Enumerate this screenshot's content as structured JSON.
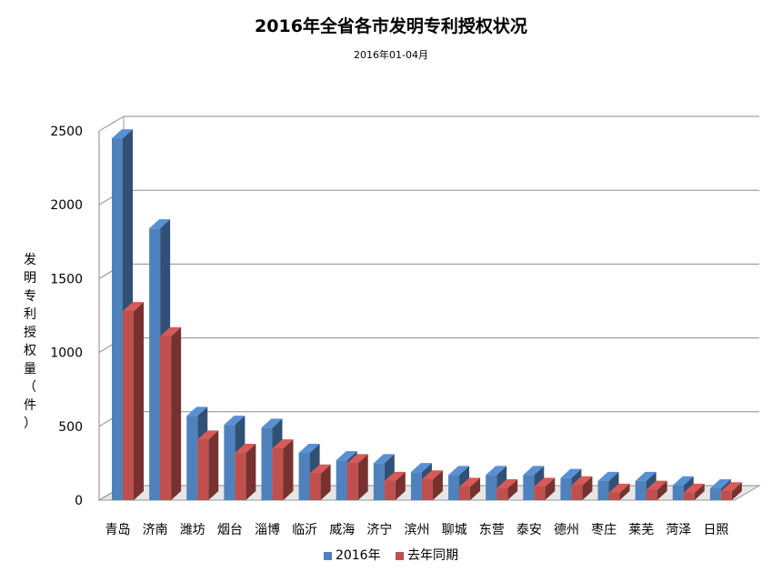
{
  "chart_data": {
    "type": "bar",
    "title": "2016年全省各市发明专利授权状况",
    "subtitle": "2016年01-04月",
    "ylabel": "发明专利授权量（件）",
    "xlabel": "",
    "ylim": [
      0,
      2500
    ],
    "yticks": [
      0,
      500,
      1000,
      1500,
      2000,
      2500
    ],
    "grid": true,
    "legend_position": "bottom",
    "categories": [
      "青岛",
      "济南",
      "潍坊",
      "烟台",
      "淄博",
      "临沂",
      "威海",
      "济宁",
      "滨州",
      "聊城",
      "东营",
      "泰安",
      "德州",
      "枣庄",
      "莱芜",
      "菏泽",
      "日照"
    ],
    "series": [
      {
        "name": "2016年",
        "color": "#4F81BD",
        "values": [
          2450,
          1840,
          570,
          510,
          490,
          320,
          270,
          250,
          190,
          170,
          170,
          170,
          150,
          130,
          130,
          100,
          80
        ]
      },
      {
        "name": "去年同期",
        "color": "#C0504D",
        "values": [
          1280,
          1110,
          410,
          320,
          350,
          180,
          250,
          130,
          140,
          90,
          80,
          90,
          100,
          50,
          70,
          50,
          60
        ]
      }
    ]
  }
}
